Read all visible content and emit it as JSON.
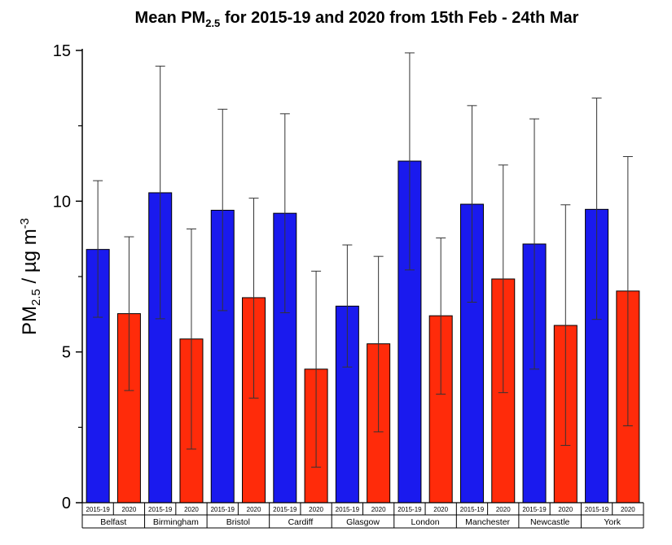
{
  "chart_data": {
    "type": "bar",
    "title": {
      "main": "Mean PM",
      "sub": "2.5",
      "rest": " for 2015-19 and 2020 from 15th Feb - 24th Mar"
    },
    "ylabel": {
      "main": "PM",
      "sub": "2.5",
      "middle": " / µg m",
      "sup": "-3"
    },
    "xlabel": "",
    "ylim": [
      0,
      15
    ],
    "yticks": [
      0,
      5,
      10,
      15
    ],
    "grid": false,
    "categories": [
      "Belfast",
      "Birmingham",
      "Bristol",
      "Cardiff",
      "Glasgow",
      "London",
      "Manchester",
      "Newcastle",
      "York"
    ],
    "series": [
      {
        "name": "2015-19",
        "color": "#1a1aee",
        "values": [
          8.4,
          10.28,
          9.7,
          9.6,
          6.52,
          11.33,
          9.9,
          8.58,
          9.73
        ],
        "error_low": [
          6.15,
          6.1,
          6.37,
          6.3,
          4.5,
          7.72,
          6.65,
          4.43,
          6.08
        ],
        "error_high": [
          10.68,
          14.48,
          13.05,
          12.9,
          8.55,
          14.92,
          13.17,
          12.73,
          13.42
        ]
      },
      {
        "name": "2020",
        "color": "#ff2b0a",
        "values": [
          6.27,
          5.43,
          6.8,
          4.43,
          5.27,
          6.2,
          7.42,
          5.88,
          7.02
        ],
        "error_low": [
          3.72,
          1.78,
          3.47,
          1.18,
          2.35,
          3.6,
          3.65,
          1.9,
          2.55
        ],
        "error_high": [
          8.82,
          9.08,
          10.1,
          7.68,
          8.17,
          8.78,
          11.2,
          9.88,
          11.48
        ]
      }
    ]
  }
}
